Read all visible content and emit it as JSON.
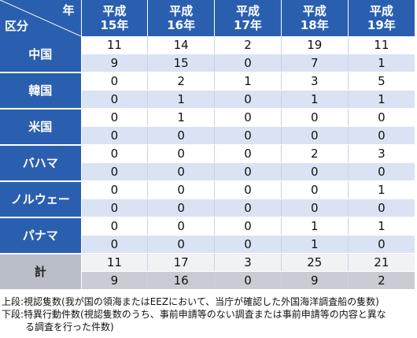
{
  "header": {
    "corner_year": "年",
    "corner_category": "区分",
    "columns": [
      {
        "line1": "平成",
        "line2": "15年"
      },
      {
        "line1": "平成",
        "line2": "16年"
      },
      {
        "line1": "平成",
        "line2": "17年"
      },
      {
        "line1": "平成",
        "line2": "18年"
      },
      {
        "line1": "平成",
        "line2": "19年"
      }
    ]
  },
  "rows": [
    {
      "name": "中国",
      "upper": [
        "11",
        "14",
        "2",
        "19",
        "11"
      ],
      "lower": [
        "9",
        "15",
        "0",
        "7",
        "1"
      ]
    },
    {
      "name": "韓国",
      "upper": [
        "0",
        "2",
        "1",
        "3",
        "5"
      ],
      "lower": [
        "0",
        "1",
        "0",
        "1",
        "1"
      ]
    },
    {
      "name": "米国",
      "upper": [
        "0",
        "1",
        "0",
        "0",
        "0"
      ],
      "lower": [
        "0",
        "0",
        "0",
        "0",
        "0"
      ]
    },
    {
      "name": "バハマ",
      "upper": [
        "0",
        "0",
        "0",
        "2",
        "3"
      ],
      "lower": [
        "0",
        "0",
        "0",
        "0",
        "0"
      ]
    },
    {
      "name": "ノルウェー",
      "upper": [
        "0",
        "0",
        "0",
        "0",
        "1"
      ],
      "lower": [
        "0",
        "0",
        "0",
        "0",
        "0"
      ]
    },
    {
      "name": "パナマ",
      "upper": [
        "0",
        "0",
        "0",
        "1",
        "1"
      ],
      "lower": [
        "0",
        "0",
        "0",
        "1",
        "0"
      ]
    }
  ],
  "total": {
    "name": "計",
    "upper": [
      "11",
      "17",
      "3",
      "25",
      "21"
    ],
    "lower": [
      "9",
      "16",
      "0",
      "9",
      "2"
    ]
  },
  "notes": {
    "line1": "上段:視認隻数(我が国の領海またはEEZにおいて、当庁が確認した外国海洋調査船の隻数)",
    "line2": "下段:特異行動件数(視認隻数のうち、事前申請等のない調査または事前申請等の内容と異な",
    "line3": "る調査を行った件数)"
  },
  "colors": {
    "header_blue": "#2a5fb0",
    "stripe_blue": "#d9e3f3",
    "total_gray": "#b9bec8"
  }
}
